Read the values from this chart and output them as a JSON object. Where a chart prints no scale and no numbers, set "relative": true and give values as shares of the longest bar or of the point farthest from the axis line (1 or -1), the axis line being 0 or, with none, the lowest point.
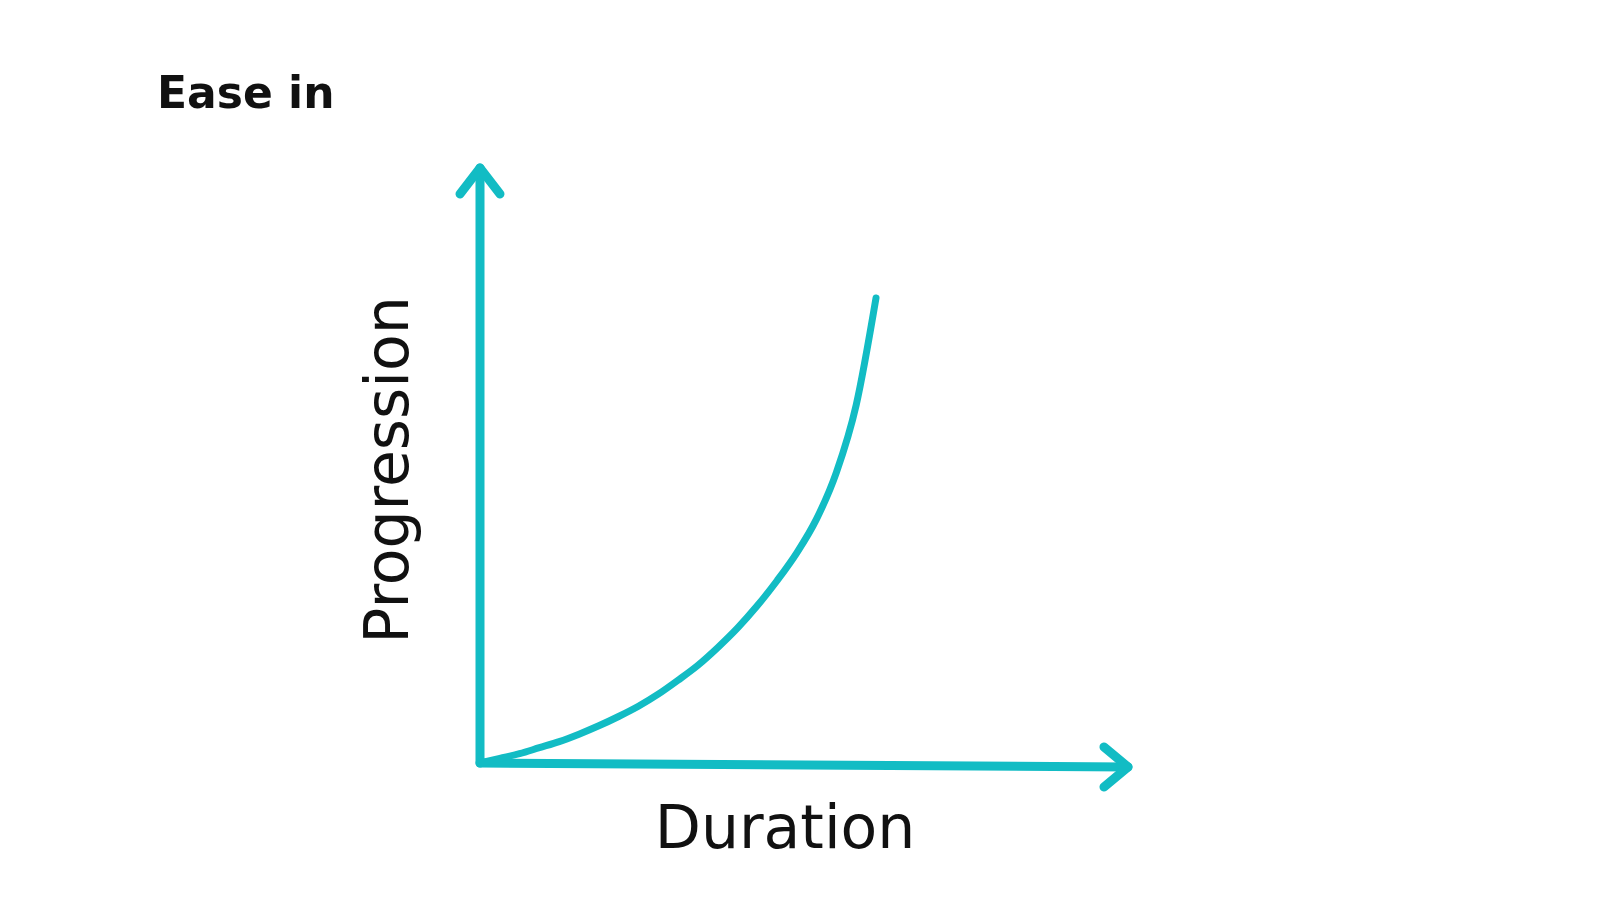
{
  "chart_data": {
    "type": "line",
    "title": "Ease in",
    "xlabel": "Duration",
    "ylabel": "Progression",
    "relative": true,
    "marker": "none",
    "line_style": "solid",
    "categories": [
      null,
      null,
      null,
      null,
      null,
      null,
      null,
      null,
      null,
      null,
      null,
      null,
      null,
      null,
      null,
      null,
      null,
      null,
      null,
      null,
      null
    ],
    "series": [
      {
        "color": "#12bcc4",
        "values": [
          0,
          0.01,
          0.02,
          0.033,
          0.046,
          0.062,
          0.08,
          0.1,
          0.122,
          0.148,
          0.178,
          0.21,
          0.248,
          0.29,
          0.338,
          0.392,
          0.452,
          0.525,
          0.625,
          0.77,
          1
        ]
      }
    ]
  }
}
